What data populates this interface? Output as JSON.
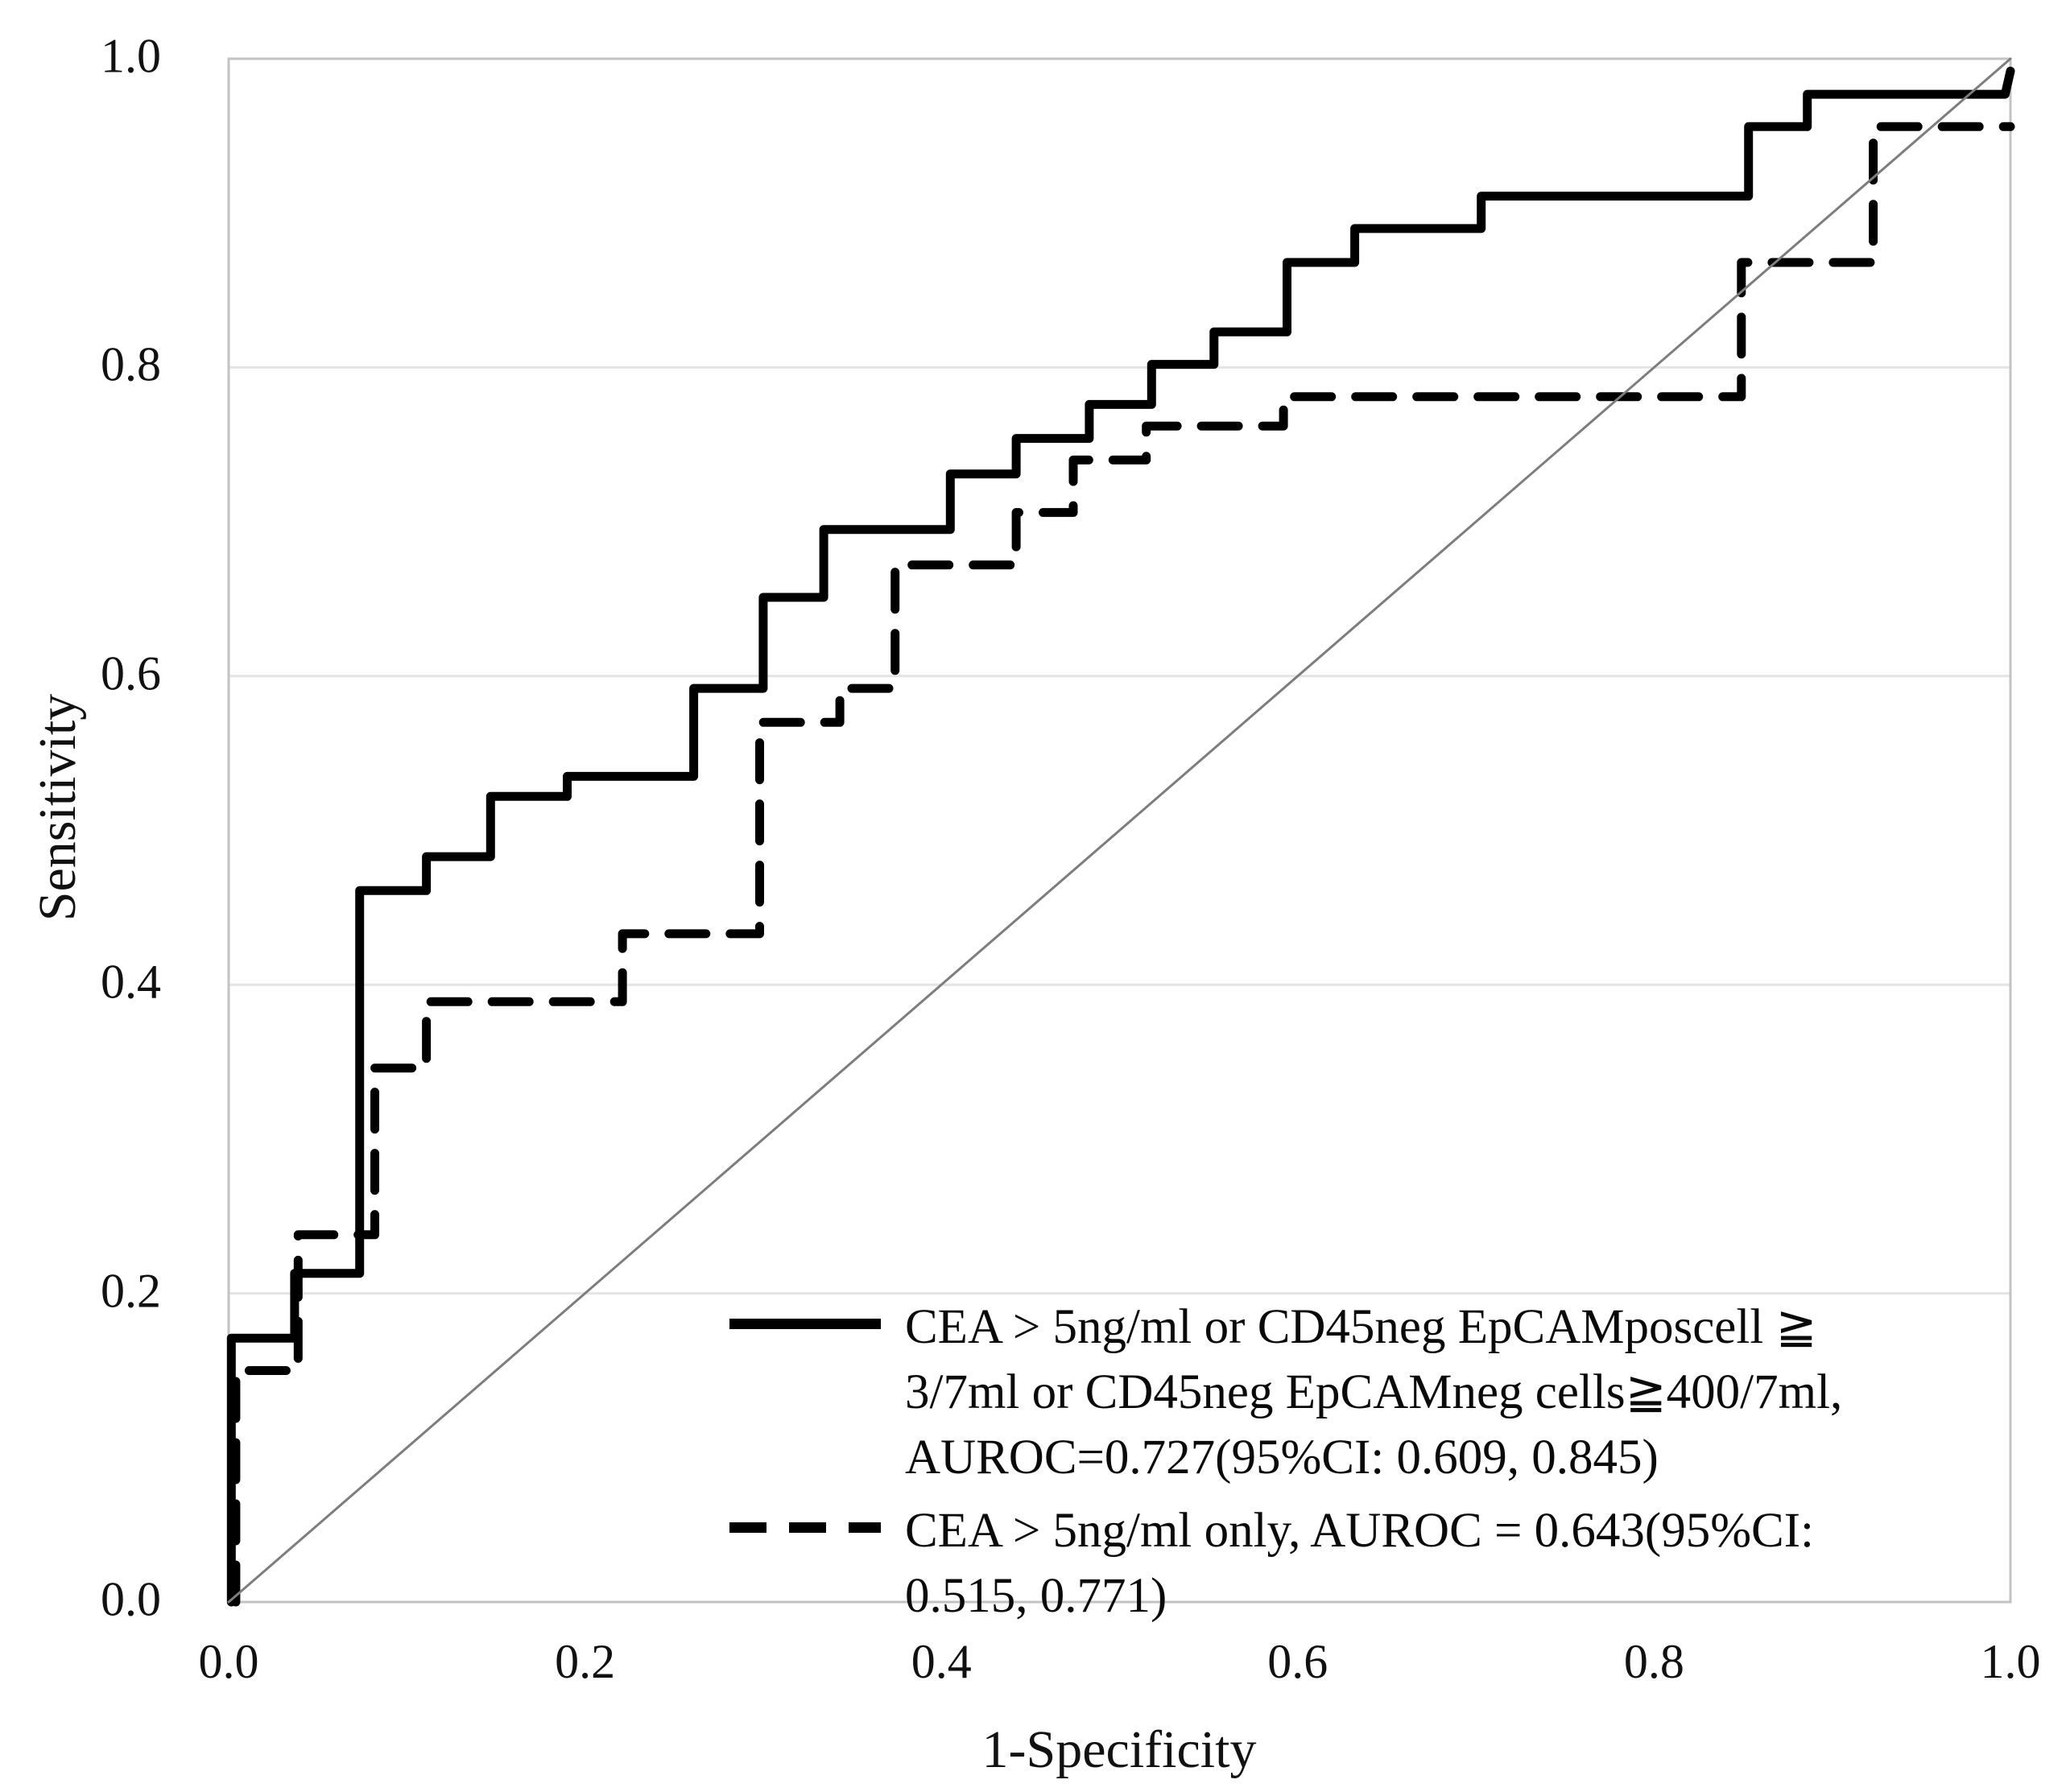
{
  "figure": {
    "kind": "ROC curve figure",
    "background": "#ffffff"
  },
  "colors": {
    "curve": "#000000",
    "reference_line": "#7d7d7d",
    "frame": "#c3c3c3",
    "gridline": "#e4e4e4",
    "text": "#111111"
  },
  "axes": {
    "x": {
      "title": "1-Specificity",
      "ticks": [
        "0.0",
        "0.2",
        "0.4",
        "0.6",
        "0.8",
        "1.0"
      ],
      "range": [
        0,
        1
      ]
    },
    "y": {
      "title": "Sensitivity",
      "ticks": [
        "0.0",
        "0.2",
        "0.4",
        "0.6",
        "0.8",
        "1.0"
      ],
      "range": [
        0,
        1
      ]
    }
  },
  "chart_data": {
    "type": "line",
    "subtype": "roc-step-curves",
    "title": "",
    "xlabel": "1-Specificity",
    "ylabel": "Sensitivity",
    "xlim": [
      0,
      1
    ],
    "ylim": [
      0,
      1
    ],
    "grid": "horizontal-only",
    "gridline_values": [
      0.2,
      0.4,
      0.6,
      0.8
    ],
    "legend_position": "inside-bottom-right",
    "series": [
      {
        "name": "CEA > 5ng/ml or CD45neg EpCAMposcell ≧ 3/7ml or CD45neg EpCAMneg cells≧400/7ml, AUROC=0.727(95%CI: 0.609, 0.845)",
        "style": "solid",
        "auroc": 0.727,
        "ci95": [
          0.609,
          0.845
        ],
        "points": [
          [
            0.0015,
            0
          ],
          [
            0.0015,
            0.171
          ],
          [
            0.037,
            0.171
          ],
          [
            0.037,
            0.213
          ],
          [
            0.0735,
            0.213
          ],
          [
            0.0735,
            0.461
          ],
          [
            0.111,
            0.461
          ],
          [
            0.111,
            0.483
          ],
          [
            0.147,
            0.483
          ],
          [
            0.147,
            0.522
          ],
          [
            0.19,
            0.522
          ],
          [
            0.19,
            0.535
          ],
          [
            0.261,
            0.535
          ],
          [
            0.261,
            0.592
          ],
          [
            0.3,
            0.592
          ],
          [
            0.3,
            0.651
          ],
          [
            0.334,
            0.651
          ],
          [
            0.334,
            0.695
          ],
          [
            0.405,
            0.695
          ],
          [
            0.405,
            0.731
          ],
          [
            0.442,
            0.731
          ],
          [
            0.442,
            0.754
          ],
          [
            0.483,
            0.754
          ],
          [
            0.483,
            0.776
          ],
          [
            0.518,
            0.776
          ],
          [
            0.518,
            0.802
          ],
          [
            0.553,
            0.802
          ],
          [
            0.553,
            0.823
          ],
          [
            0.594,
            0.823
          ],
          [
            0.594,
            0.868
          ],
          [
            0.632,
            0.868
          ],
          [
            0.632,
            0.89
          ],
          [
            0.703,
            0.89
          ],
          [
            0.703,
            0.911
          ],
          [
            0.853,
            0.911
          ],
          [
            0.853,
            0.956
          ],
          [
            0.886,
            0.956
          ],
          [
            0.886,
            0.977
          ],
          [
            0.997,
            0.977
          ],
          [
            1.0,
            0.992
          ]
        ]
      },
      {
        "name": "CEA > 5ng/ml only, AUROC = 0.643(95%CI: 0.515, 0.771)",
        "style": "dashed",
        "auroc": 0.643,
        "ci95": [
          0.515,
          0.771
        ],
        "points": [
          [
            0.004,
            0
          ],
          [
            0.004,
            0.15
          ],
          [
            0.039,
            0.15
          ],
          [
            0.039,
            0.238
          ],
          [
            0.082,
            0.238
          ],
          [
            0.082,
            0.346
          ],
          [
            0.111,
            0.346
          ],
          [
            0.111,
            0.389
          ],
          [
            0.221,
            0.389
          ],
          [
            0.221,
            0.433
          ],
          [
            0.298,
            0.433
          ],
          [
            0.298,
            0.57
          ],
          [
            0.343,
            0.57
          ],
          [
            0.343,
            0.592
          ],
          [
            0.374,
            0.592
          ],
          [
            0.374,
            0.672
          ],
          [
            0.442,
            0.672
          ],
          [
            0.442,
            0.706
          ],
          [
            0.474,
            0.706
          ],
          [
            0.474,
            0.74
          ],
          [
            0.515,
            0.74
          ],
          [
            0.515,
            0.762
          ],
          [
            0.592,
            0.762
          ],
          [
            0.592,
            0.781
          ],
          [
            0.849,
            0.781
          ],
          [
            0.849,
            0.868
          ],
          [
            0.923,
            0.868
          ],
          [
            0.923,
            0.956
          ],
          [
            1.0,
            0.956
          ]
        ]
      },
      {
        "name": "reference-diagonal",
        "style": "thin-reference",
        "points": [
          [
            0,
            0
          ],
          [
            1,
            1
          ]
        ]
      }
    ]
  },
  "legend": {
    "entries": [
      {
        "marker": "solid-line",
        "lines": [
          "CEA > 5ng/ml or CD45neg EpCAMposcell  ≧",
          "3/7ml or CD45neg EpCAMneg cells≧400/7ml,",
          "AUROC=0.727(95%CI: 0.609, 0.845)"
        ]
      },
      {
        "marker": "dashed-line",
        "lines": [
          "CEA > 5ng/ml only, AUROC = 0.643(95%CI:",
          "0.515, 0.771)"
        ]
      }
    ]
  }
}
